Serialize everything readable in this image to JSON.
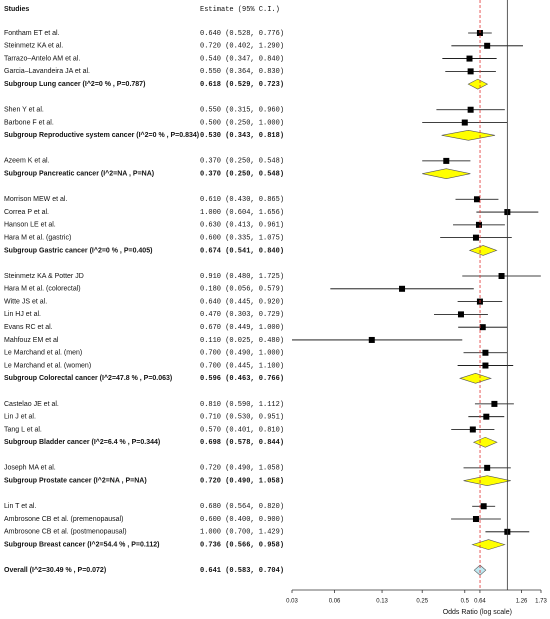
{
  "chart_data": {
    "type": "forest",
    "headers": {
      "study": "Studies",
      "estimate": "Estimate (95% C.I.)"
    },
    "x_label": "Odds Ratio (log scale)",
    "xscale": "log",
    "xlim": [
      0.03,
      1.73
    ],
    "xticks": [
      0.03,
      0.06,
      0.13,
      0.25,
      0.5,
      0.64,
      1.26,
      1.73
    ],
    "reference_line": 1,
    "study_color": "#000000",
    "subgroup_color": "#ffff00",
    "overall_color": "#bfe9f2",
    "pooled_line_color": "#e03030",
    "groups": [
      {
        "studies": [
          {
            "name": "Fontham ET et al.",
            "value": 0.64,
            "lower": 0.528,
            "upper": 0.776,
            "value_label": "0.640 (0.528, 0.776)"
          },
          {
            "name": "Steinmetz KA et al.",
            "value": 0.72,
            "lower": 0.402,
            "upper": 1.29,
            "value_label": "0.720 (0.402, 1.290)"
          },
          {
            "name": "Tarrazo–Antelo AM et al.",
            "value": 0.54,
            "lower": 0.347,
            "upper": 0.84,
            "value_label": "0.540 (0.347, 0.840)"
          },
          {
            "name": "Garcia–Lavandeira JA et al.",
            "value": 0.55,
            "lower": 0.364,
            "upper": 0.83,
            "value_label": "0.550 (0.364, 0.830)"
          }
        ],
        "subgroup": {
          "name": "Subgroup Lung cancer (I^2=0 % , P=0.787)",
          "value": 0.618,
          "lower": 0.529,
          "upper": 0.723,
          "value_label": "0.618 (0.529, 0.723)"
        }
      },
      {
        "studies": [
          {
            "name": "Shen Y et al.",
            "value": 0.55,
            "lower": 0.315,
            "upper": 0.96,
            "value_label": "0.550 (0.315, 0.960)"
          },
          {
            "name": "Barbone F et al.",
            "value": 0.5,
            "lower": 0.25,
            "upper": 1.0,
            "value_label": "0.500 (0.250, 1.000)"
          }
        ],
        "subgroup": {
          "name": "Subgroup Reproductive system cancer (I^2=0 % , P=0.834)",
          "value": 0.53,
          "lower": 0.343,
          "upper": 0.818,
          "value_label": "0.530 (0.343, 0.818)"
        }
      },
      {
        "studies": [
          {
            "name": "Azeem K et al.",
            "value": 0.37,
            "lower": 0.25,
            "upper": 0.548,
            "value_label": "0.370 (0.250, 0.548)"
          }
        ],
        "subgroup": {
          "name": "Subgroup Pancreatic cancer (I^2=NA , P=NA)",
          "value": 0.37,
          "lower": 0.25,
          "upper": 0.548,
          "value_label": "0.370 (0.250, 0.548)"
        }
      },
      {
        "studies": [
          {
            "name": "Morrison MEW et al.",
            "value": 0.61,
            "lower": 0.43,
            "upper": 0.865,
            "value_label": "0.610 (0.430, 0.865)"
          },
          {
            "name": "Correa P et al.",
            "value": 1.0,
            "lower": 0.604,
            "upper": 1.656,
            "value_label": "1.000 (0.604, 1.656)"
          },
          {
            "name": "Hanson LE et al.",
            "value": 0.63,
            "lower": 0.413,
            "upper": 0.961,
            "value_label": "0.630 (0.413, 0.961)"
          },
          {
            "name": "Hara M et al. (gastric)",
            "value": 0.6,
            "lower": 0.335,
            "upper": 1.075,
            "value_label": "0.600 (0.335, 1.075)"
          }
        ],
        "subgroup": {
          "name": "Subgroup Gastric cancer (I^2=0 % , P=0.405)",
          "value": 0.674,
          "lower": 0.541,
          "upper": 0.84,
          "value_label": "0.674 (0.541, 0.840)"
        }
      },
      {
        "studies": [
          {
            "name": "Steinmetz KA & Potter JD",
            "value": 0.91,
            "lower": 0.48,
            "upper": 1.725,
            "value_label": "0.910 (0.480, 1.725)"
          },
          {
            "name": "Hara M et al. (colorectal)",
            "value": 0.18,
            "lower": 0.056,
            "upper": 0.579,
            "value_label": "0.180 (0.056, 0.579)"
          },
          {
            "name": "Witte JS et al.",
            "value": 0.64,
            "lower": 0.445,
            "upper": 0.92,
            "value_label": "0.640 (0.445, 0.920)"
          },
          {
            "name": "Lin HJ et al.",
            "value": 0.47,
            "lower": 0.303,
            "upper": 0.729,
            "value_label": "0.470 (0.303, 0.729)"
          },
          {
            "name": "Evans RC et al.",
            "value": 0.67,
            "lower": 0.449,
            "upper": 1.0,
            "value_label": "0.670 (0.449, 1.000)"
          },
          {
            "name": "Mahfouz EM et al",
            "value": 0.11,
            "lower": 0.025,
            "upper": 0.48,
            "value_label": "0.110 (0.025, 0.480)"
          },
          {
            "name": "Le Marchand et al. (men)",
            "value": 0.7,
            "lower": 0.49,
            "upper": 1.0,
            "value_label": "0.700 (0.490, 1.000)"
          },
          {
            "name": "Le Marchand et al. (women)",
            "value": 0.7,
            "lower": 0.445,
            "upper": 1.1,
            "value_label": "0.700 (0.445, 1.100)"
          }
        ],
        "subgroup": {
          "name": "Subgroup Colorectal cancer (I^2=47.8 % , P=0.063)",
          "value": 0.596,
          "lower": 0.463,
          "upper": 0.766,
          "value_label": "0.596 (0.463, 0.766)"
        }
      },
      {
        "studies": [
          {
            "name": "Castelao JE et al.",
            "value": 0.81,
            "lower": 0.59,
            "upper": 1.112,
            "value_label": "0.810 (0.590, 1.112)"
          },
          {
            "name": "Lin J et al.",
            "value": 0.71,
            "lower": 0.53,
            "upper": 0.951,
            "value_label": "0.710 (0.530, 0.951)"
          },
          {
            "name": "Tang L et al.",
            "value": 0.57,
            "lower": 0.401,
            "upper": 0.81,
            "value_label": "0.570 (0.401, 0.810)"
          }
        ],
        "subgroup": {
          "name": "Subgroup Bladder cancer (I^2=6.4 % , P=0.344)",
          "value": 0.698,
          "lower": 0.578,
          "upper": 0.844,
          "value_label": "0.698 (0.578, 0.844)"
        }
      },
      {
        "studies": [
          {
            "name": "Joseph MA et al.",
            "value": 0.72,
            "lower": 0.49,
            "upper": 1.058,
            "value_label": "0.720 (0.490, 1.058)"
          }
        ],
        "subgroup": {
          "name": "Subgroup Prostate cancer (I^2=NA , P=NA)",
          "value": 0.72,
          "lower": 0.49,
          "upper": 1.058,
          "value_label": "0.720 (0.490, 1.058)"
        }
      },
      {
        "studies": [
          {
            "name": "Lin T et al.",
            "value": 0.68,
            "lower": 0.564,
            "upper": 0.82,
            "value_label": "0.680 (0.564, 0.820)"
          },
          {
            "name": "Ambrosone CB et al. (premenopausal)",
            "value": 0.6,
            "lower": 0.4,
            "upper": 0.9,
            "value_label": "0.600 (0.400, 0.900)"
          },
          {
            "name": "Ambrosone CB et al. (postmenopausal)",
            "value": 1.0,
            "lower": 0.7,
            "upper": 1.429,
            "value_label": "1.000 (0.700, 1.429)"
          }
        ],
        "subgroup": {
          "name": "Subgroup Breast cancer (I^2=54.4 % , P=0.112)",
          "value": 0.736,
          "lower": 0.566,
          "upper": 0.958,
          "value_label": "0.736 (0.566, 0.958)"
        }
      }
    ],
    "overall": {
      "name": "Overall (I^2=30.49 % , P=0.072)",
      "value": 0.641,
      "lower": 0.583,
      "upper": 0.704,
      "value_label": "0.641 (0.583, 0.704)"
    }
  }
}
